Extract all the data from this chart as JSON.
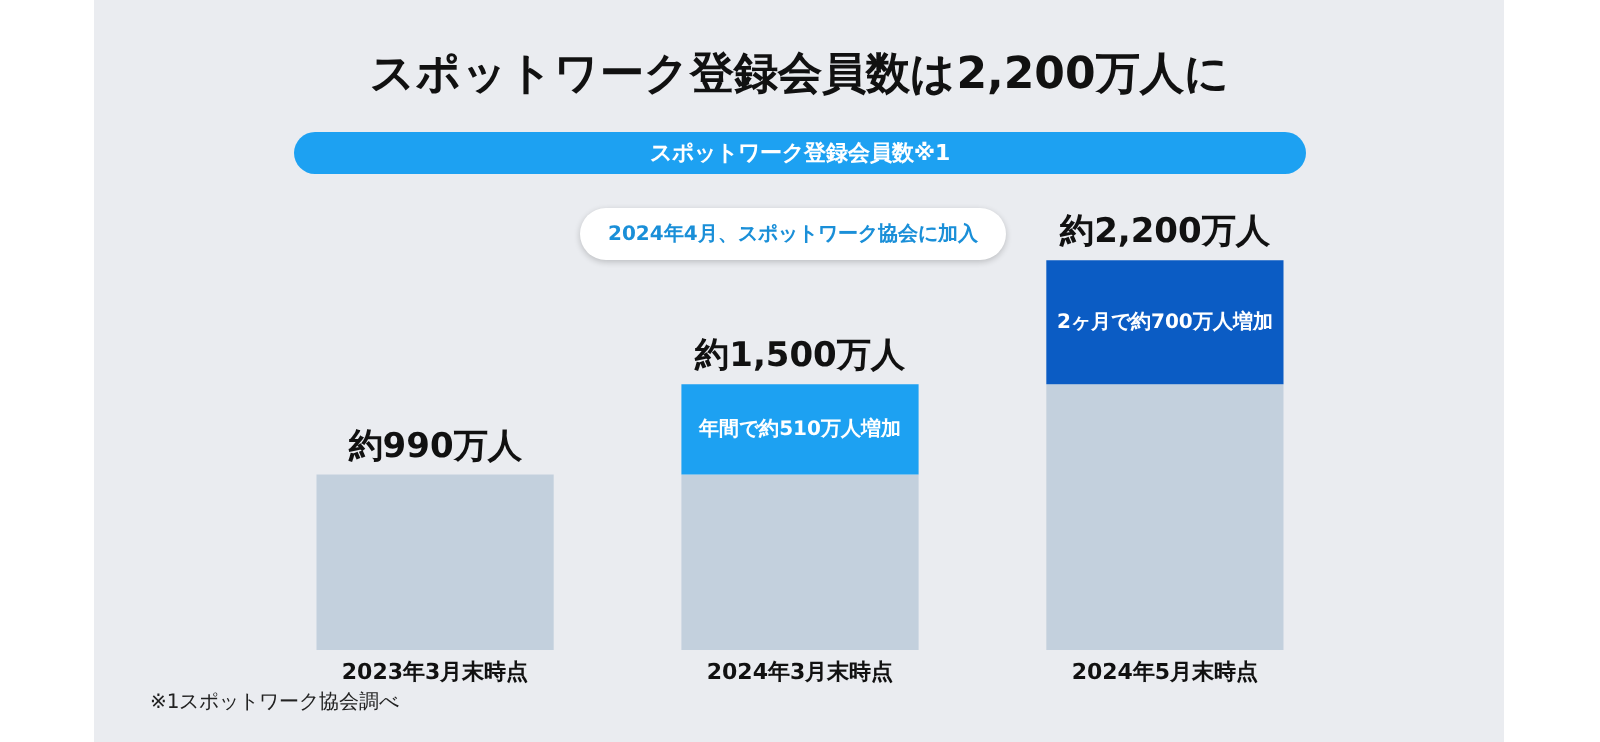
{
  "chart_data": {
    "type": "bar",
    "title": "スポットワーク登録会員数は2,200万人に",
    "subtitle": "スポットワーク登録会員数※1",
    "categories": [
      "2023年3月末時点",
      "2024年3月末時点",
      "2024年5月末時点"
    ],
    "stacked": true,
    "series": [
      {
        "color": "#c3d0dd",
        "values": [
          990,
          990,
          1500
        ]
      },
      {
        "colors": [
          null,
          "#1da1f2",
          "#0b5cc4"
        ],
        "values": [
          null,
          510,
          700
        ],
        "value_labels": [
          null,
          "年間で約510万人増加",
          "2ヶ月で約700万人増加"
        ]
      }
    ],
    "totals": [
      "約990万人",
      "約1,500万人",
      "約2,200万人"
    ],
    "annotations": [
      "2024年4月、スポットワーク協会に加入",
      "※1スポットワーク協会調べ"
    ]
  }
}
